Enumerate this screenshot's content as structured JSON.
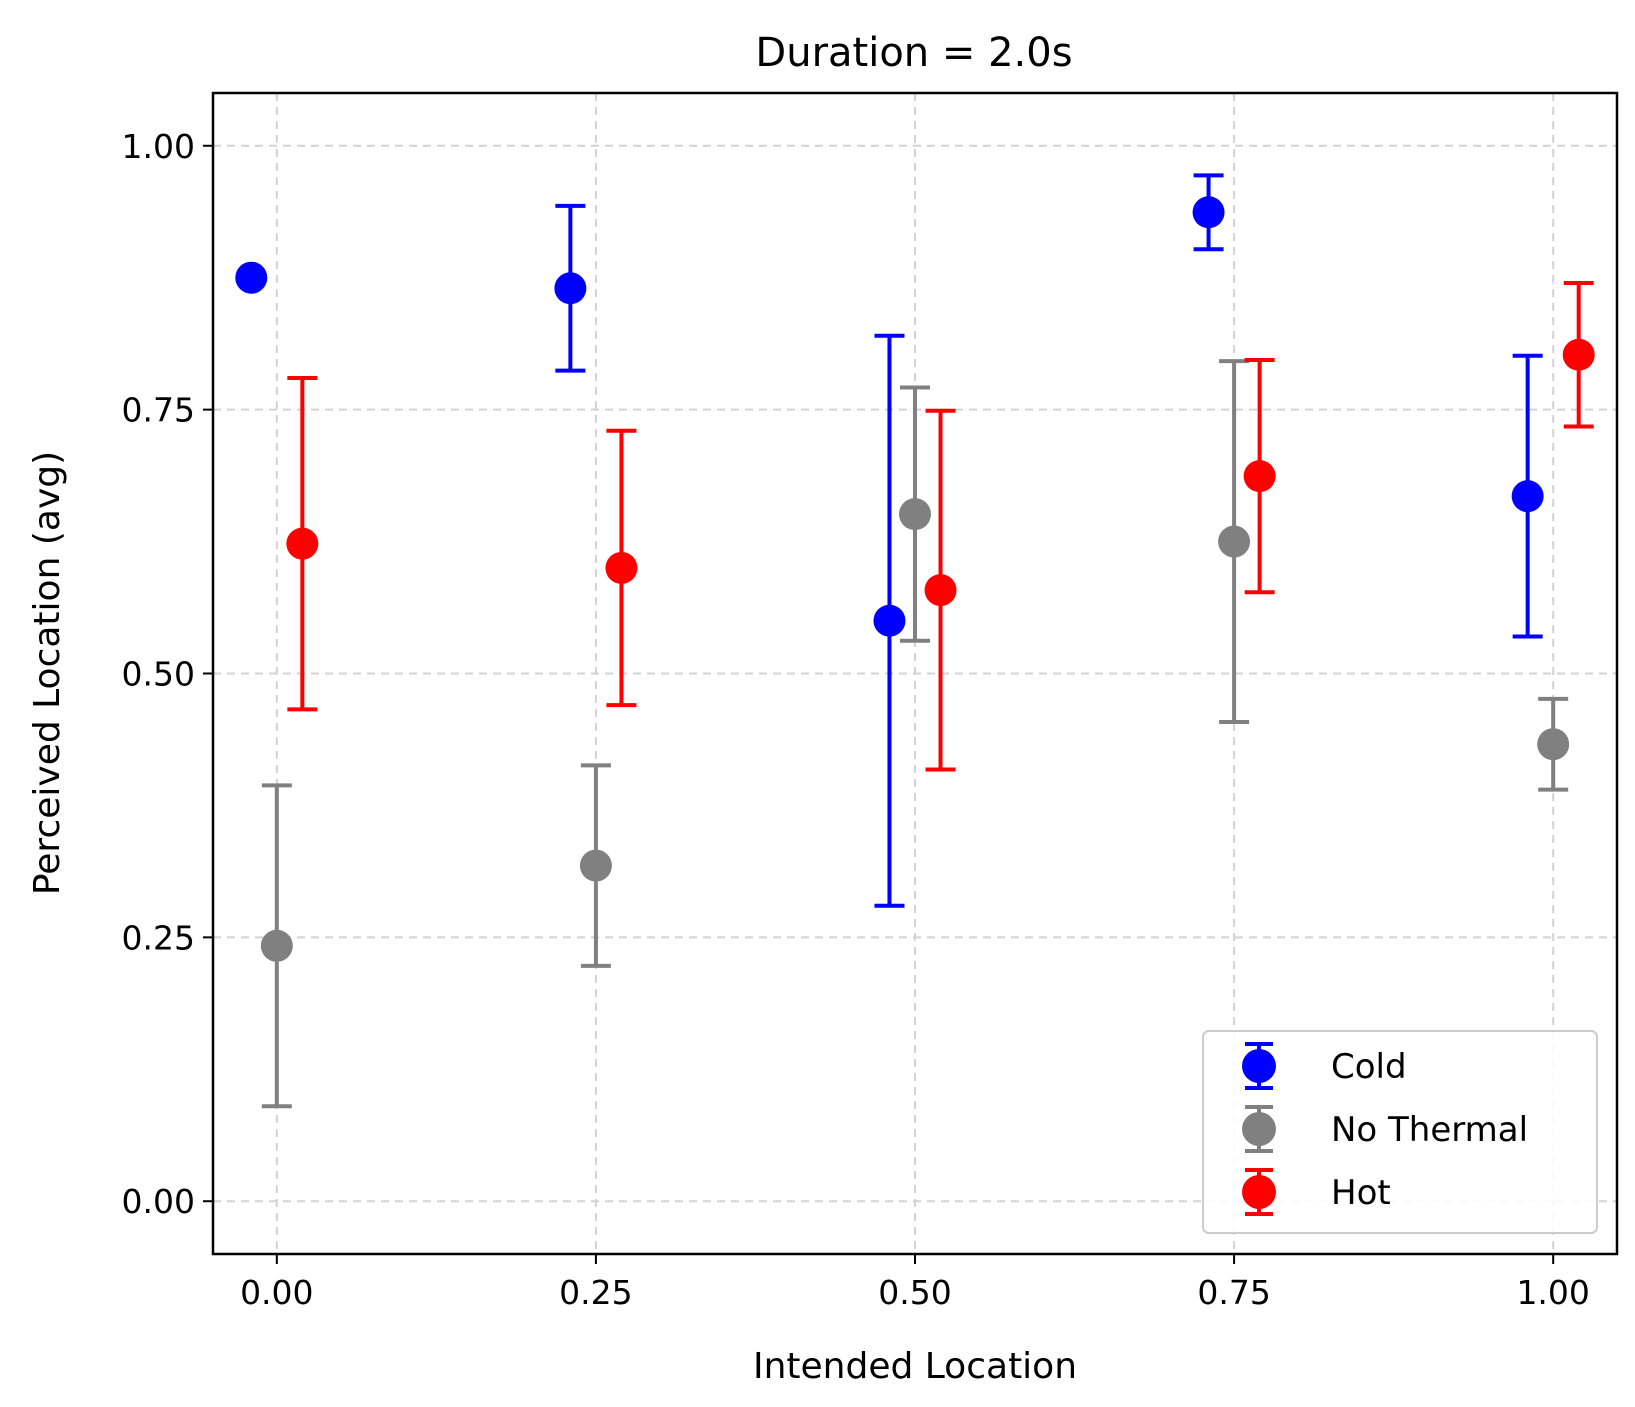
{
  "chart_data": {
    "type": "scatter",
    "title": "Duration = 2.0s",
    "xlabel": "Intended Location",
    "ylabel": "Perceived Location (avg)",
    "xlim": [
      -0.05,
      1.05
    ],
    "ylim": [
      -0.05,
      1.05
    ],
    "xticks": [
      0.0,
      0.25,
      0.5,
      0.75,
      1.0
    ],
    "xtick_labels": [
      "0.00",
      "0.25",
      "0.50",
      "0.75",
      "1.00"
    ],
    "yticks": [
      0.0,
      0.25,
      0.5,
      0.75,
      1.0
    ],
    "ytick_labels": [
      "0.00",
      "0.25",
      "0.50",
      "0.75",
      "1.00"
    ],
    "grid": true,
    "legend_position": "lower-right",
    "series": [
      {
        "name": "Cold",
        "color": "#0000ff",
        "points": [
          {
            "x": -0.02,
            "y": 0.875,
            "err": 0.0
          },
          {
            "x": 0.23,
            "y": 0.865,
            "err": 0.078
          },
          {
            "x": 0.48,
            "y": 0.55,
            "err": 0.27
          },
          {
            "x": 0.73,
            "y": 0.937,
            "err": 0.035
          },
          {
            "x": 0.98,
            "y": 0.668,
            "err": 0.133
          }
        ]
      },
      {
        "name": "No Thermal",
        "color": "#808080",
        "points": [
          {
            "x": 0.0,
            "y": 0.242,
            "err": 0.152
          },
          {
            "x": 0.25,
            "y": 0.318,
            "err": 0.095
          },
          {
            "x": 0.5,
            "y": 0.651,
            "err": 0.12
          },
          {
            "x": 0.75,
            "y": 0.625,
            "err": 0.171
          },
          {
            "x": 1.0,
            "y": 0.433,
            "err": 0.043
          }
        ]
      },
      {
        "name": "Hot",
        "color": "#ff0000",
        "points": [
          {
            "x": 0.02,
            "y": 0.623,
            "err": 0.157
          },
          {
            "x": 0.27,
            "y": 0.6,
            "err": 0.13
          },
          {
            "x": 0.52,
            "y": 0.579,
            "err": 0.17
          },
          {
            "x": 0.77,
            "y": 0.687,
            "err": 0.11
          },
          {
            "x": 1.02,
            "y": 0.802,
            "err": 0.068
          }
        ]
      }
    ]
  }
}
